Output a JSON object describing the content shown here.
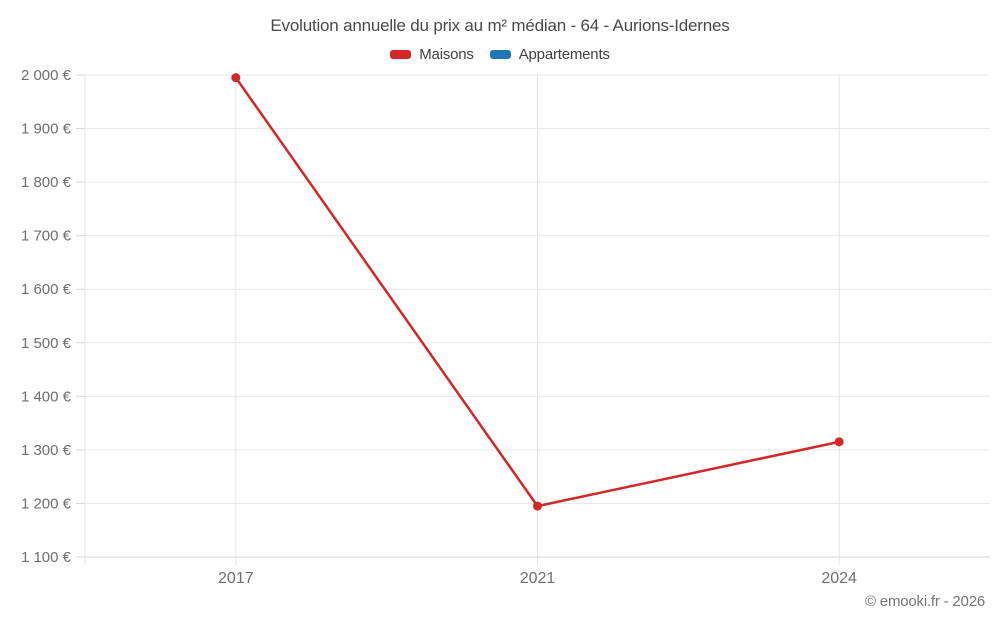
{
  "chart_data": {
    "type": "line",
    "title": "Evolution annuelle du prix au m² médian - 64 - Aurions-Idernes",
    "categories": [
      "2017",
      "2021",
      "2024"
    ],
    "series": [
      {
        "name": "Maisons",
        "color": "#d62728",
        "values": [
          1995,
          1195,
          1315
        ]
      },
      {
        "name": "Appartements",
        "color": "#1f77b4",
        "values": []
      }
    ],
    "ylim": [
      1100,
      2000
    ],
    "y_ticks": [
      {
        "value": 2000,
        "label": "2 000 €"
      },
      {
        "value": 1900,
        "label": "1 900 €"
      },
      {
        "value": 1800,
        "label": "1 800 €"
      },
      {
        "value": 1700,
        "label": "1 700 €"
      },
      {
        "value": 1600,
        "label": "1 600 €"
      },
      {
        "value": 1500,
        "label": "1 500 €"
      },
      {
        "value": 1400,
        "label": "1 400 €"
      },
      {
        "value": 1300,
        "label": "1 300 €"
      },
      {
        "value": 1200,
        "label": "1 200 €"
      },
      {
        "value": 1100,
        "label": "1 100 €"
      }
    ],
    "grid": true,
    "legend_position": "top",
    "xlabel": "",
    "ylabel": "",
    "unit": "€"
  },
  "legend": {
    "items": [
      {
        "label": "Maisons",
        "color": "#d62728"
      },
      {
        "label": "Appartements",
        "color": "#1f77b4"
      }
    ]
  },
  "footer": {
    "copyright": "© emooki.fr - 2026"
  }
}
